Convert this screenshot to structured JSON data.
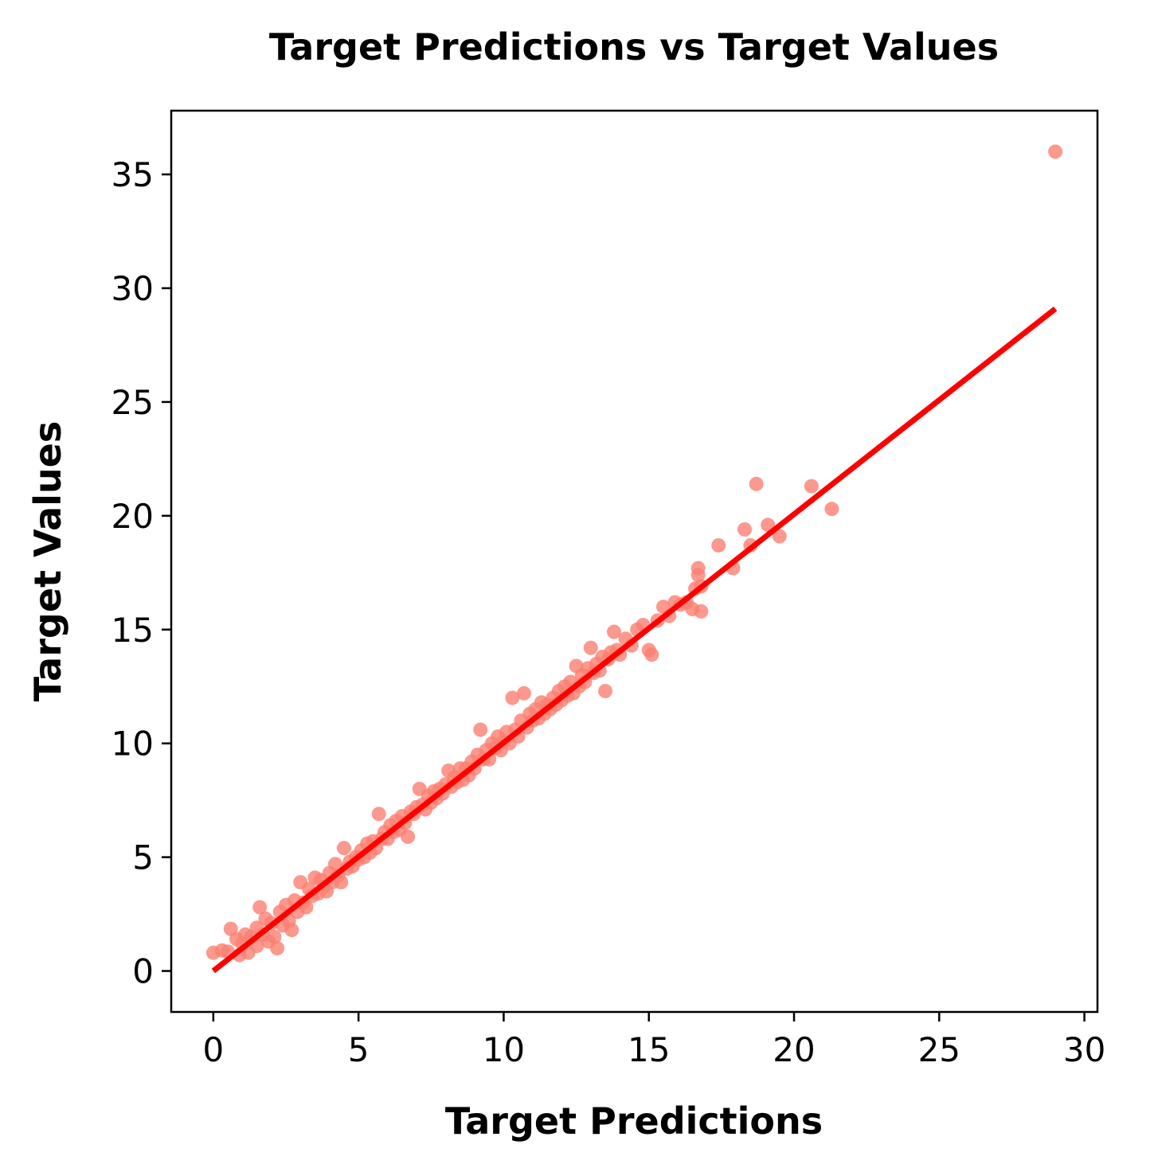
{
  "chart_data": {
    "type": "scatter",
    "title": "Target Predictions vs Target Values",
    "xlabel": "Target Predictions",
    "ylabel": "Target Values",
    "xlim": [
      -1.45,
      30.45
    ],
    "ylim": [
      -1.8,
      37.8
    ],
    "x_ticks": [
      "0",
      "5",
      "10",
      "15",
      "20",
      "25",
      "30"
    ],
    "y_ticks": [
      "0",
      "5",
      "10",
      "15",
      "20",
      "25",
      "30",
      "35"
    ],
    "x_tick_values": [
      0,
      5,
      10,
      15,
      20,
      25,
      30
    ],
    "y_tick_values": [
      0,
      5,
      10,
      15,
      20,
      25,
      30,
      35
    ],
    "grid": false,
    "colors": {
      "points": "#fa8072",
      "fit_line": "#ff0000",
      "axes": "#000000"
    },
    "fit_line": {
      "x": [
        0,
        29.0
      ],
      "y": [
        0,
        29.1
      ]
    },
    "series": [
      {
        "points": [
          [
            0.0,
            0.8
          ],
          [
            0.3,
            0.9
          ],
          [
            0.5,
            0.85
          ],
          [
            0.6,
            1.85
          ],
          [
            0.8,
            1.4
          ],
          [
            0.9,
            0.7
          ],
          [
            1.0,
            1.2
          ],
          [
            1.1,
            1.6
          ],
          [
            1.2,
            0.8
          ],
          [
            1.3,
            1.5
          ],
          [
            1.5,
            1.9
          ],
          [
            1.5,
            1.1
          ],
          [
            1.6,
            2.8
          ],
          [
            1.7,
            1.6
          ],
          [
            1.8,
            2.3
          ],
          [
            1.9,
            1.3
          ],
          [
            2.0,
            2.1
          ],
          [
            2.1,
            1.5
          ],
          [
            2.2,
            1.0
          ],
          [
            2.3,
            2.6
          ],
          [
            2.4,
            2.0
          ],
          [
            2.5,
            2.9
          ],
          [
            2.6,
            2.2
          ],
          [
            2.7,
            1.8
          ],
          [
            2.8,
            3.1
          ],
          [
            2.9,
            2.6
          ],
          [
            3.0,
            3.9
          ],
          [
            3.1,
            3.0
          ],
          [
            3.2,
            2.8
          ],
          [
            3.3,
            3.6
          ],
          [
            3.4,
            3.3
          ],
          [
            3.5,
            4.1
          ],
          [
            3.6,
            3.4
          ],
          [
            3.7,
            4.0
          ],
          [
            3.8,
            3.7
          ],
          [
            3.9,
            3.5
          ],
          [
            4.0,
            4.3
          ],
          [
            4.1,
            3.9
          ],
          [
            4.2,
            4.7
          ],
          [
            4.3,
            4.2
          ],
          [
            4.4,
            3.9
          ],
          [
            4.5,
            5.4
          ],
          [
            4.6,
            4.5
          ],
          [
            4.7,
            4.8
          ],
          [
            4.8,
            4.6
          ],
          [
            4.9,
            5.0
          ],
          [
            5.0,
            4.9
          ],
          [
            5.1,
            5.3
          ],
          [
            5.2,
            5.0
          ],
          [
            5.3,
            5.6
          ],
          [
            5.4,
            5.2
          ],
          [
            5.5,
            5.7
          ],
          [
            5.6,
            5.4
          ],
          [
            5.7,
            6.9
          ],
          [
            5.8,
            5.8
          ],
          [
            5.9,
            6.1
          ],
          [
            6.0,
            5.8
          ],
          [
            6.1,
            6.4
          ],
          [
            6.2,
            6.1
          ],
          [
            6.3,
            6.6
          ],
          [
            6.4,
            6.2
          ],
          [
            6.5,
            6.8
          ],
          [
            6.6,
            6.5
          ],
          [
            6.7,
            5.9
          ],
          [
            6.8,
            7.0
          ],
          [
            6.9,
            6.9
          ],
          [
            7.0,
            7.2
          ],
          [
            7.1,
            8.0
          ],
          [
            7.2,
            7.3
          ],
          [
            7.3,
            7.1
          ],
          [
            7.4,
            7.7
          ],
          [
            7.5,
            7.4
          ],
          [
            7.6,
            7.9
          ],
          [
            7.7,
            7.6
          ],
          [
            7.8,
            8.0
          ],
          [
            7.9,
            7.8
          ],
          [
            8.0,
            8.2
          ],
          [
            8.1,
            8.8
          ],
          [
            8.2,
            8.1
          ],
          [
            8.3,
            8.5
          ],
          [
            8.4,
            8.3
          ],
          [
            8.5,
            8.9
          ],
          [
            8.6,
            8.4
          ],
          [
            8.7,
            8.9
          ],
          [
            8.8,
            8.6
          ],
          [
            8.9,
            9.2
          ],
          [
            9.0,
            8.9
          ],
          [
            9.1,
            9.5
          ],
          [
            9.2,
            10.6
          ],
          [
            9.3,
            9.3
          ],
          [
            9.4,
            9.7
          ],
          [
            9.5,
            9.3
          ],
          [
            9.6,
            10.0
          ],
          [
            9.7,
            9.8
          ],
          [
            9.8,
            10.3
          ],
          [
            9.9,
            9.7
          ],
          [
            10.0,
            10.1
          ],
          [
            10.1,
            10.5
          ],
          [
            10.2,
            10.0
          ],
          [
            10.3,
            12.0
          ],
          [
            10.4,
            10.6
          ],
          [
            10.5,
            10.3
          ],
          [
            10.6,
            11.0
          ],
          [
            10.7,
            12.2
          ],
          [
            10.8,
            10.7
          ],
          [
            10.9,
            11.3
          ],
          [
            11.0,
            11.0
          ],
          [
            11.1,
            11.5
          ],
          [
            11.2,
            11.1
          ],
          [
            11.3,
            11.8
          ],
          [
            11.4,
            11.3
          ],
          [
            11.5,
            11.7
          ],
          [
            11.6,
            11.5
          ],
          [
            11.7,
            12.0
          ],
          [
            11.8,
            11.7
          ],
          [
            11.9,
            12.3
          ],
          [
            12.0,
            11.9
          ],
          [
            12.1,
            12.5
          ],
          [
            12.2,
            12.1
          ],
          [
            12.3,
            12.7
          ],
          [
            12.4,
            12.2
          ],
          [
            12.5,
            13.4
          ],
          [
            12.6,
            12.5
          ],
          [
            12.7,
            13.0
          ],
          [
            12.8,
            12.7
          ],
          [
            12.9,
            13.3
          ],
          [
            13.0,
            14.2
          ],
          [
            13.1,
            13.1
          ],
          [
            13.2,
            13.5
          ],
          [
            13.3,
            13.2
          ],
          [
            13.4,
            13.8
          ],
          [
            13.5,
            12.3
          ],
          [
            13.6,
            13.7
          ],
          [
            13.7,
            14.0
          ],
          [
            13.8,
            14.9
          ],
          [
            13.9,
            14.1
          ],
          [
            14.0,
            13.9
          ],
          [
            14.2,
            14.6
          ],
          [
            14.4,
            14.3
          ],
          [
            14.6,
            15.0
          ],
          [
            14.8,
            15.2
          ],
          [
            15.0,
            14.1
          ],
          [
            15.1,
            13.9
          ],
          [
            15.3,
            15.4
          ],
          [
            15.5,
            16.0
          ],
          [
            15.7,
            15.6
          ],
          [
            15.9,
            16.2
          ],
          [
            16.1,
            16.1
          ],
          [
            16.3,
            16.2
          ],
          [
            16.5,
            15.9
          ],
          [
            16.6,
            16.8
          ],
          [
            16.7,
            17.4
          ],
          [
            16.7,
            17.7
          ],
          [
            16.8,
            16.9
          ],
          [
            16.8,
            15.8
          ],
          [
            17.4,
            18.7
          ],
          [
            17.9,
            17.7
          ],
          [
            18.3,
            19.4
          ],
          [
            18.5,
            18.7
          ],
          [
            18.7,
            21.4
          ],
          [
            19.1,
            19.6
          ],
          [
            19.5,
            19.1
          ],
          [
            20.6,
            21.3
          ],
          [
            21.3,
            20.3
          ],
          [
            29.0,
            36.0
          ]
        ]
      }
    ]
  }
}
